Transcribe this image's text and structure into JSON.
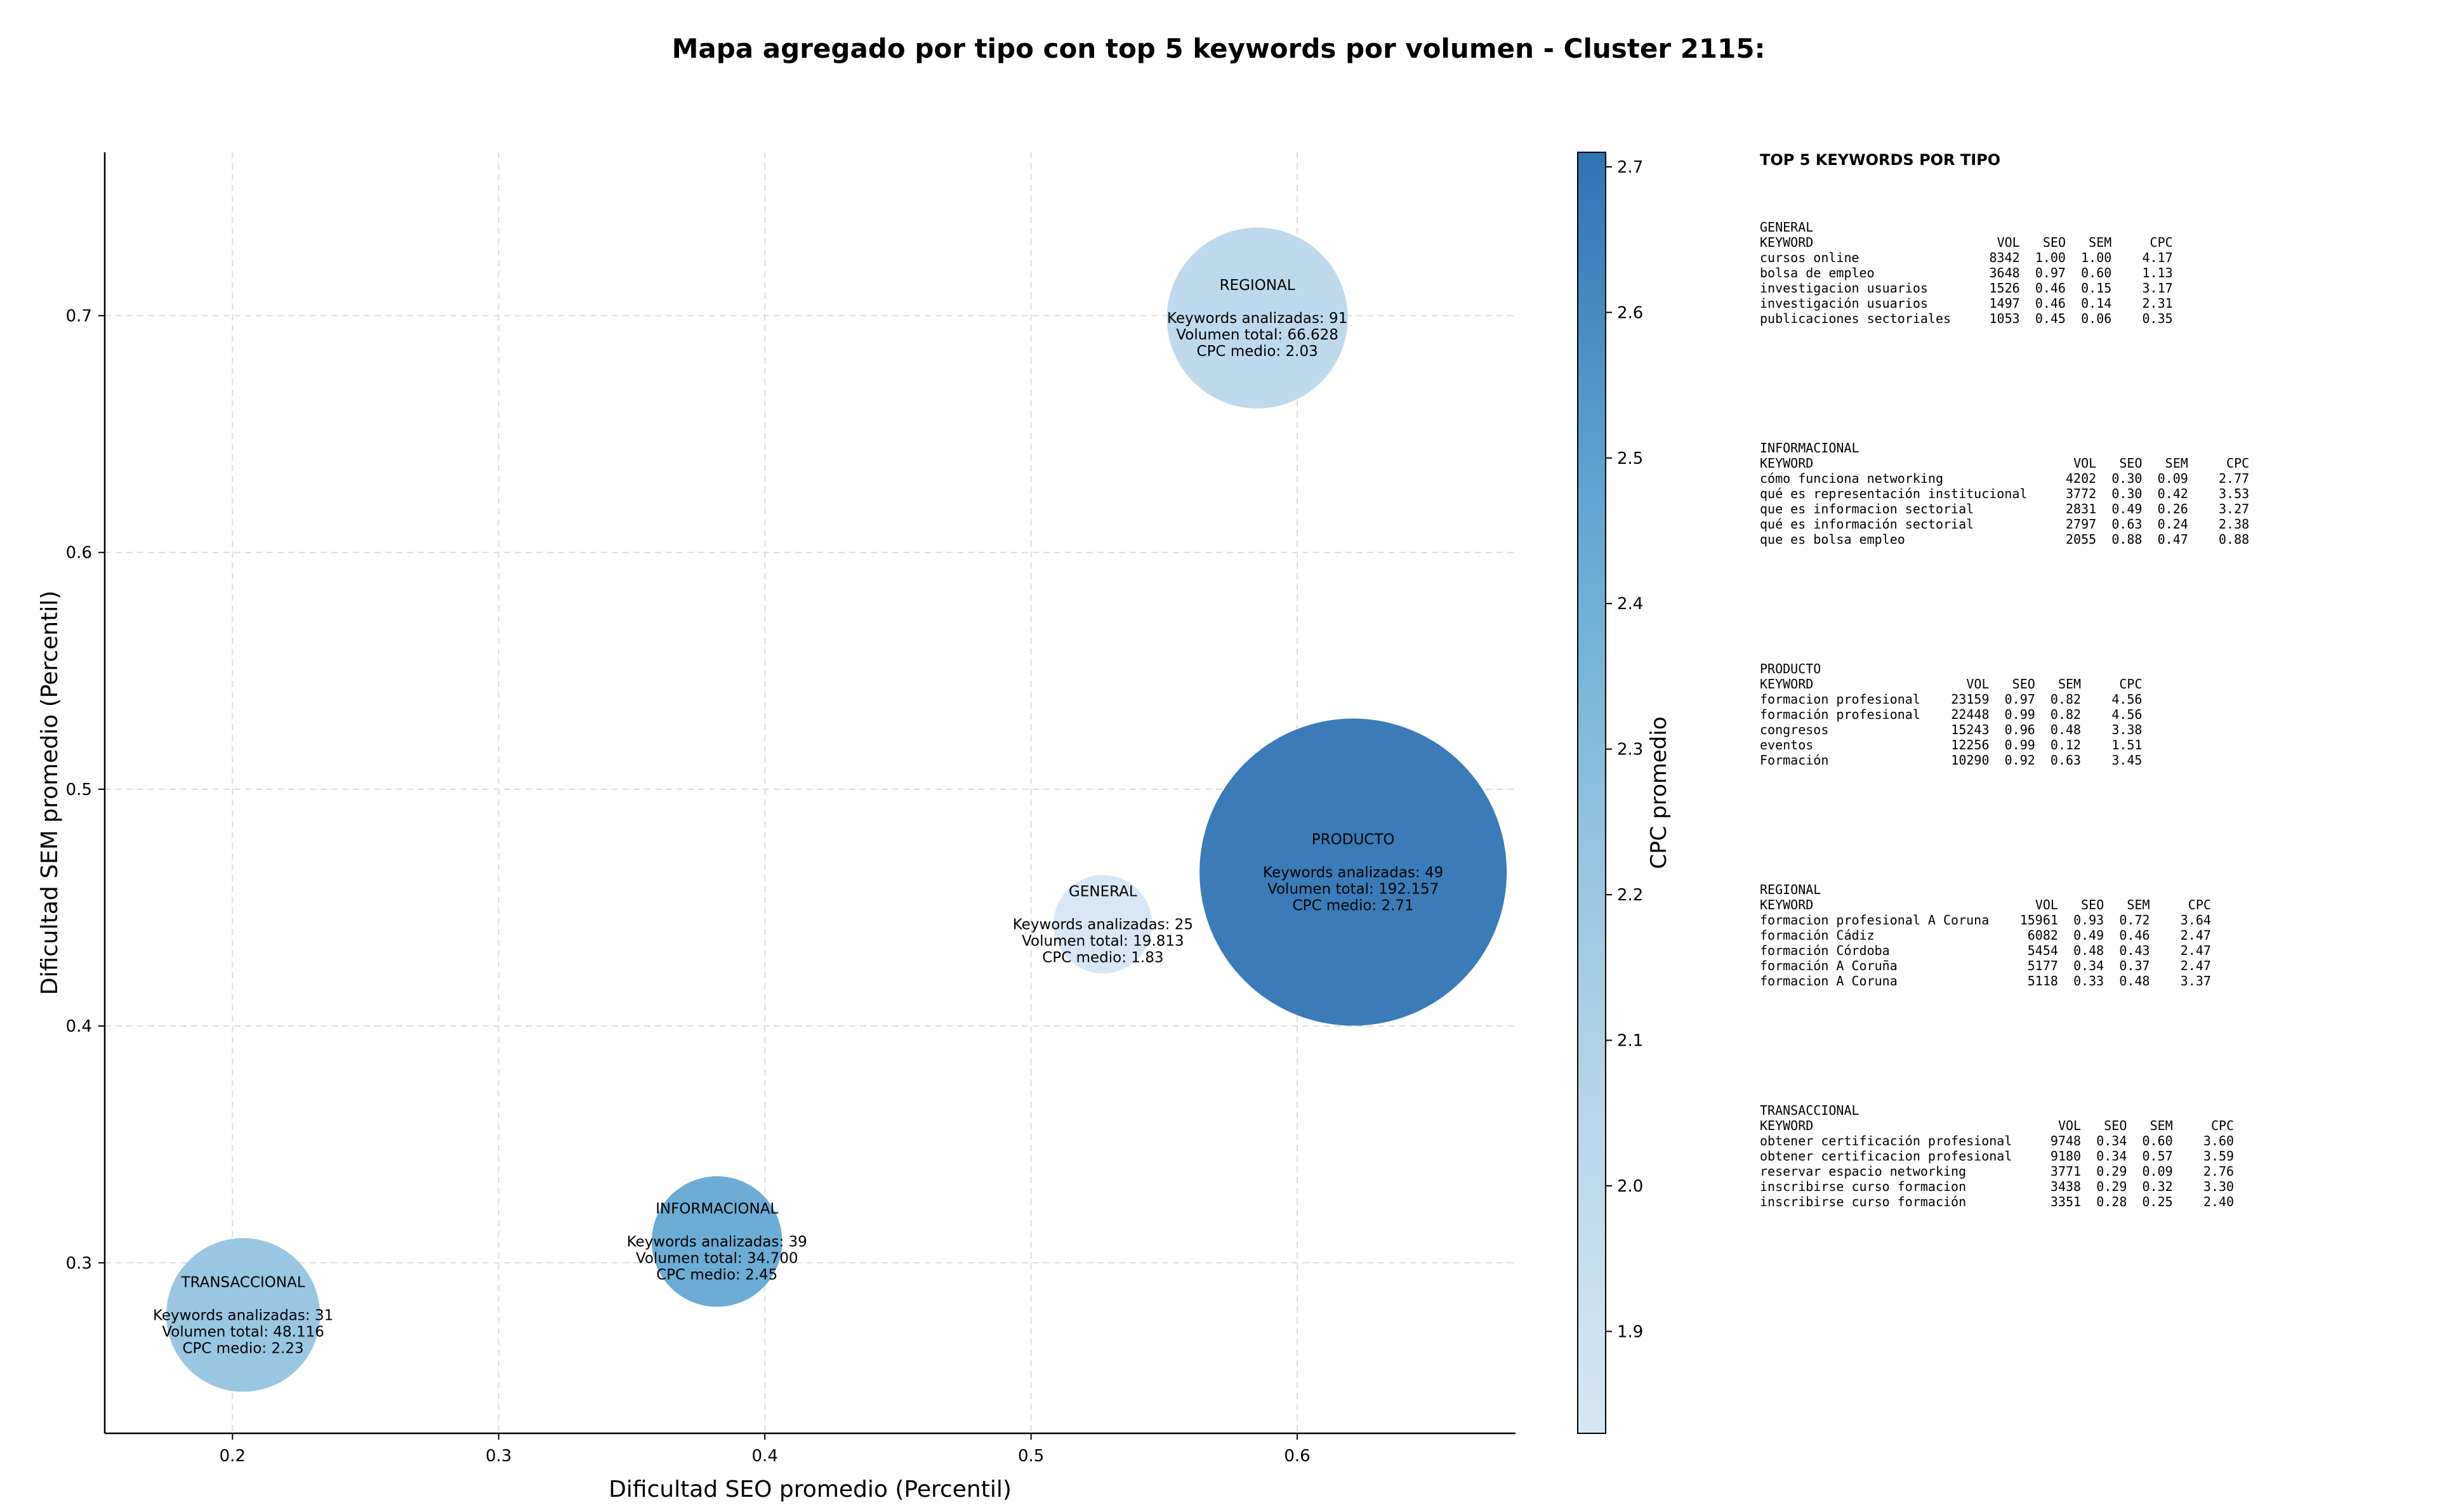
{
  "chart_data": {
    "type": "scatter",
    "title": "Mapa agregado por tipo con top 5 keywords por volumen - Cluster 2115:",
    "xlabel": "Dificultad SEO promedio (Percentil)",
    "ylabel": "Dificultad SEM promedio (Percentil)",
    "xlim": [
      0.152,
      0.682
    ],
    "ylim": [
      0.228,
      0.769
    ],
    "xticks": [
      "0.2",
      "0.3",
      "0.4",
      "0.5",
      "0.6"
    ],
    "yticks": [
      "0.3",
      "0.4",
      "0.5",
      "0.6",
      "0.7"
    ],
    "grid": true,
    "colorbar": {
      "label": "CPC promedio",
      "range": [
        1.83,
        2.71
      ],
      "ticks": [
        "1.9",
        "2.0",
        "2.1",
        "2.2",
        "2.3",
        "2.4",
        "2.5",
        "2.6",
        "2.7"
      ],
      "colormap": "Blues"
    },
    "points": [
      {
        "tipo": "TRANSACCIONAL",
        "x": 0.204,
        "y": 0.278,
        "keywords": 31,
        "volumen": "48.116",
        "cpc": 2.23,
        "lines": [
          "TRANSACCIONAL",
          "",
          "Keywords analizadas: 31",
          "Volumen total: 48.116",
          "CPC medio: 2.23"
        ]
      },
      {
        "tipo": "INFORMACIONAL",
        "x": 0.382,
        "y": 0.309,
        "keywords": 39,
        "volumen": "34.700",
        "cpc": 2.45,
        "lines": [
          "INFORMACIONAL",
          "",
          "Keywords analizadas: 39",
          "Volumen total: 34.700",
          "CPC medio: 2.45"
        ]
      },
      {
        "tipo": "GENERAL",
        "x": 0.527,
        "y": 0.443,
        "keywords": 25,
        "volumen": "19.813",
        "cpc": 1.83,
        "lines": [
          "GENERAL",
          "",
          "Keywords analizadas: 25",
          "Volumen total: 19.813",
          "CPC medio: 1.83"
        ]
      },
      {
        "tipo": "PRODUCTO",
        "x": 0.621,
        "y": 0.465,
        "keywords": 49,
        "volumen": "192.157",
        "cpc": 2.71,
        "lines": [
          "PRODUCTO",
          "",
          "Keywords analizadas: 49",
          "Volumen total: 192.157",
          "CPC medio: 2.71"
        ]
      },
      {
        "tipo": "REGIONAL",
        "x": 0.585,
        "y": 0.699,
        "keywords": 91,
        "volumen": "66.628",
        "cpc": 2.03,
        "lines": [
          "REGIONAL",
          "",
          "Keywords analizadas: 91",
          "Volumen total: 66.628",
          "CPC medio: 2.03"
        ]
      }
    ]
  },
  "keyword_panel": {
    "title": "TOP 5 KEYWORDS POR TIPO",
    "columns": [
      "KEYWORD",
      "VOL",
      "SEO",
      "SEM",
      "CPC"
    ],
    "groups": [
      {
        "name": "GENERAL",
        "rows": [
          [
            "cursos online",
            "8342",
            "1.00",
            "1.00",
            "4.17"
          ],
          [
            "bolsa de empleo",
            "3648",
            "0.97",
            "0.60",
            "1.13"
          ],
          [
            "investigacion usuarios",
            "1526",
            "0.46",
            "0.15",
            "3.17"
          ],
          [
            "investigación usuarios",
            "1497",
            "0.46",
            "0.14",
            "2.31"
          ],
          [
            "publicaciones sectoriales",
            "1053",
            "0.45",
            "0.06",
            "0.35"
          ]
        ]
      },
      {
        "name": "INFORMACIONAL",
        "rows": [
          [
            "cómo funciona networking",
            "4202",
            "0.30",
            "0.09",
            "2.77"
          ],
          [
            "qué es representación institucional",
            "3772",
            "0.30",
            "0.42",
            "3.53"
          ],
          [
            "que es informacion sectorial",
            "2831",
            "0.49",
            "0.26",
            "3.27"
          ],
          [
            "qué es información sectorial",
            "2797",
            "0.63",
            "0.24",
            "2.38"
          ],
          [
            "que es bolsa empleo",
            "2055",
            "0.88",
            "0.47",
            "0.88"
          ]
        ]
      },
      {
        "name": "PRODUCTO",
        "rows": [
          [
            "formacion profesional",
            "23159",
            "0.97",
            "0.82",
            "4.56"
          ],
          [
            "formación profesional",
            "22448",
            "0.99",
            "0.82",
            "4.56"
          ],
          [
            "congresos",
            "15243",
            "0.96",
            "0.48",
            "3.38"
          ],
          [
            "eventos",
            "12256",
            "0.99",
            "0.12",
            "1.51"
          ],
          [
            "Formación",
            "10290",
            "0.92",
            "0.63",
            "3.45"
          ]
        ]
      },
      {
        "name": "REGIONAL",
        "rows": [
          [
            "formacion profesional A Coruna",
            "15961",
            "0.93",
            "0.72",
            "3.64"
          ],
          [
            "formación Cádiz",
            "6082",
            "0.49",
            "0.46",
            "2.47"
          ],
          [
            "formación Córdoba",
            "5454",
            "0.48",
            "0.43",
            "2.47"
          ],
          [
            "formación A Coruña",
            "5177",
            "0.34",
            "0.37",
            "2.47"
          ],
          [
            "formacion A Coruna",
            "5118",
            "0.33",
            "0.48",
            "3.37"
          ]
        ]
      },
      {
        "name": "TRANSACCIONAL",
        "rows": [
          [
            "obtener certificación profesional",
            "9748",
            "0.34",
            "0.60",
            "3.60"
          ],
          [
            "obtener certificacion profesional",
            "9180",
            "0.34",
            "0.57",
            "3.59"
          ],
          [
            "reservar espacio networking",
            "3771",
            "0.29",
            "0.09",
            "2.76"
          ],
          [
            "inscribirse curso formacion",
            "3438",
            "0.29",
            "0.32",
            "3.30"
          ],
          [
            "inscribirse curso formación",
            "3351",
            "0.28",
            "0.25",
            "2.40"
          ]
        ]
      }
    ]
  }
}
